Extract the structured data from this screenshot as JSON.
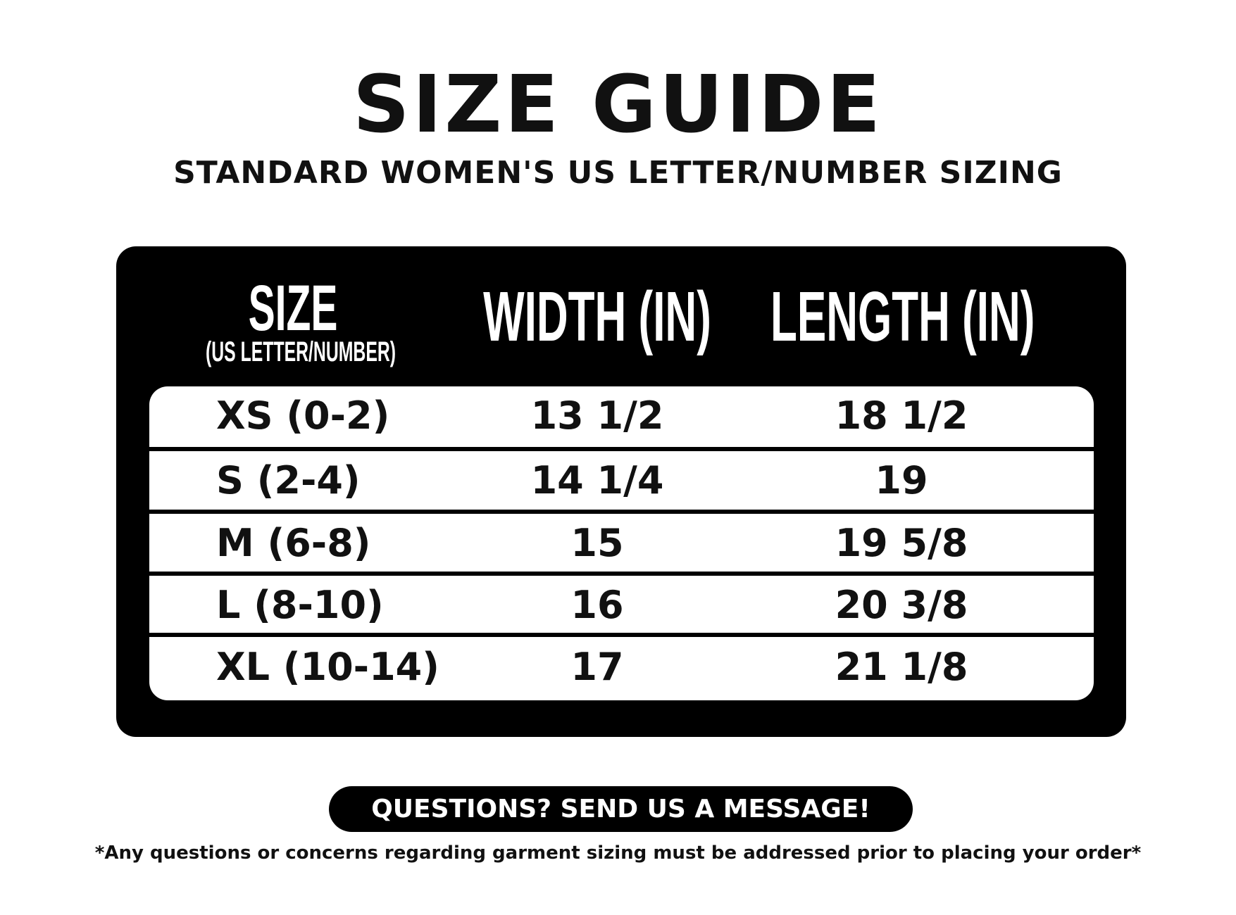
{
  "title": "SIZE GUIDE",
  "subtitle": "STANDARD WOMEN'S US LETTER/NUMBER SIZING",
  "table": {
    "headers": {
      "size": "SIZE",
      "size_sub": "(US LETTER/NUMBER)",
      "width": "WIDTH (IN)",
      "length": "LENGTH (IN)"
    },
    "rows": [
      {
        "size": "XS (0-2)",
        "width": "13 1/2",
        "length": "18 1/2"
      },
      {
        "size": "S (2-4)",
        "width": "14 1/4",
        "length": "19"
      },
      {
        "size": "M (6-8)",
        "width": "15",
        "length": "19 5/8"
      },
      {
        "size": "L (8-10)",
        "width": "16",
        "length": "20 3/8"
      },
      {
        "size": "XL (10-14)",
        "width": "17",
        "length": "21 1/8"
      }
    ]
  },
  "cta_label": "QUESTIONS? SEND US A MESSAGE!",
  "note": "*Any questions or concerns regarding garment sizing must be addressed prior to placing your order*",
  "colors": {
    "panel": "#000000",
    "background": "#ffffff",
    "text": "#111111"
  }
}
